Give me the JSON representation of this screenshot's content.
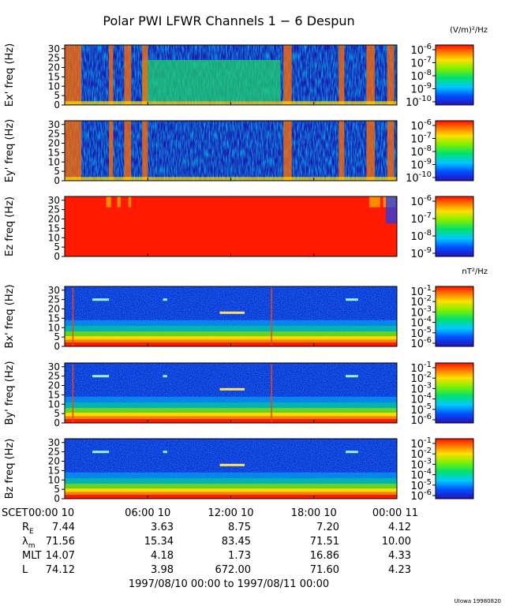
{
  "title": "Polar PWI LFWR Channels 1 − 6 Despun",
  "credit": "UIowa 19980820",
  "time_axis": {
    "scet_label": "SCET",
    "tick_labels": [
      "00:00 10",
      "06:00 10",
      "12:00 10",
      "18:00 10",
      "00:00 11"
    ],
    "range_label": "1997/08/10 00:00 to 1997/08/11 00:00"
  },
  "ephemeris": {
    "rows": [
      {
        "label": "R",
        "sub": "E",
        "values": [
          "7.44",
          "3.63",
          "8.75",
          "7.20",
          "4.12"
        ]
      },
      {
        "label": "λ",
        "sub": "m",
        "values": [
          "71.56",
          "15.34",
          "83.45",
          "71.51",
          "10.00"
        ]
      },
      {
        "label": "MLT",
        "sub": "",
        "values": [
          "14.07",
          "4.18",
          "1.73",
          "16.86",
          "4.33"
        ]
      },
      {
        "label": "L",
        "sub": "",
        "values": [
          "74.12",
          "3.98",
          "672.00",
          "71.60",
          "4.23"
        ]
      }
    ]
  },
  "chart_data": [
    {
      "type": "heatmap",
      "title": "",
      "ylabel": "Ex' freq (Hz)",
      "x": [
        "00:00 10",
        "06:00 10",
        "12:00 10",
        "18:00 10",
        "00:00 11"
      ],
      "xlim": [
        0,
        24
      ],
      "ylim": [
        0,
        32
      ],
      "yticks": [
        0,
        5,
        10,
        15,
        20,
        25,
        30
      ],
      "colorbar": {
        "unit": "(V/m)²/Hz",
        "exponents": [
          -6,
          -7,
          -8,
          -9,
          -10
        ]
      }
    },
    {
      "type": "heatmap",
      "title": "",
      "ylabel": "Ey' freq (Hz)",
      "x": [
        "00:00 10",
        "06:00 10",
        "12:00 10",
        "18:00 10",
        "00:00 11"
      ],
      "xlim": [
        0,
        24
      ],
      "ylim": [
        0,
        32
      ],
      "yticks": [
        0,
        5,
        10,
        15,
        20,
        25,
        30
      ],
      "colorbar": {
        "unit": "",
        "exponents": [
          -6,
          -7,
          -8,
          -9,
          -10
        ]
      }
    },
    {
      "type": "heatmap",
      "title": "",
      "ylabel": "Ez freq (Hz)",
      "x": [
        "00:00 10",
        "06:00 10",
        "12:00 10",
        "18:00 10",
        "00:00 11"
      ],
      "xlim": [
        0,
        24
      ],
      "ylim": [
        0,
        32
      ],
      "yticks": [
        0,
        5,
        10,
        15,
        20,
        25,
        30
      ],
      "colorbar": {
        "unit": "",
        "exponents": [
          -6,
          -7,
          -8,
          -9
        ]
      }
    },
    {
      "type": "heatmap",
      "title": "",
      "ylabel": "Bx' freq (Hz)",
      "x": [
        "00:00 10",
        "06:00 10",
        "12:00 10",
        "18:00 10",
        "00:00 11"
      ],
      "xlim": [
        0,
        24
      ],
      "ylim": [
        0,
        32
      ],
      "yticks": [
        0,
        5,
        10,
        15,
        20,
        25,
        30
      ],
      "colorbar": {
        "unit": "nT²/Hz",
        "exponents": [
          -1,
          -2,
          -3,
          -4,
          -5,
          -6
        ]
      }
    },
    {
      "type": "heatmap",
      "title": "",
      "ylabel": "By' freq (Hz)",
      "x": [
        "00:00 10",
        "06:00 10",
        "12:00 10",
        "18:00 10",
        "00:00 11"
      ],
      "xlim": [
        0,
        24
      ],
      "ylim": [
        0,
        32
      ],
      "yticks": [
        0,
        5,
        10,
        15,
        20,
        25,
        30
      ],
      "colorbar": {
        "unit": "",
        "exponents": [
          -1,
          -2,
          -3,
          -4,
          -5,
          -6
        ]
      }
    },
    {
      "type": "heatmap",
      "title": "",
      "ylabel": "Bz freq (Hz)",
      "x": [
        "00:00 10",
        "06:00 10",
        "12:00 10",
        "18:00 10",
        "00:00 11"
      ],
      "xlim": [
        0,
        24
      ],
      "ylim": [
        0,
        32
      ],
      "yticks": [
        0,
        5,
        10,
        15,
        20,
        25,
        30
      ],
      "colorbar": {
        "unit": "",
        "exponents": [
          -1,
          -2,
          -3,
          -4,
          -5,
          -6
        ]
      }
    }
  ]
}
